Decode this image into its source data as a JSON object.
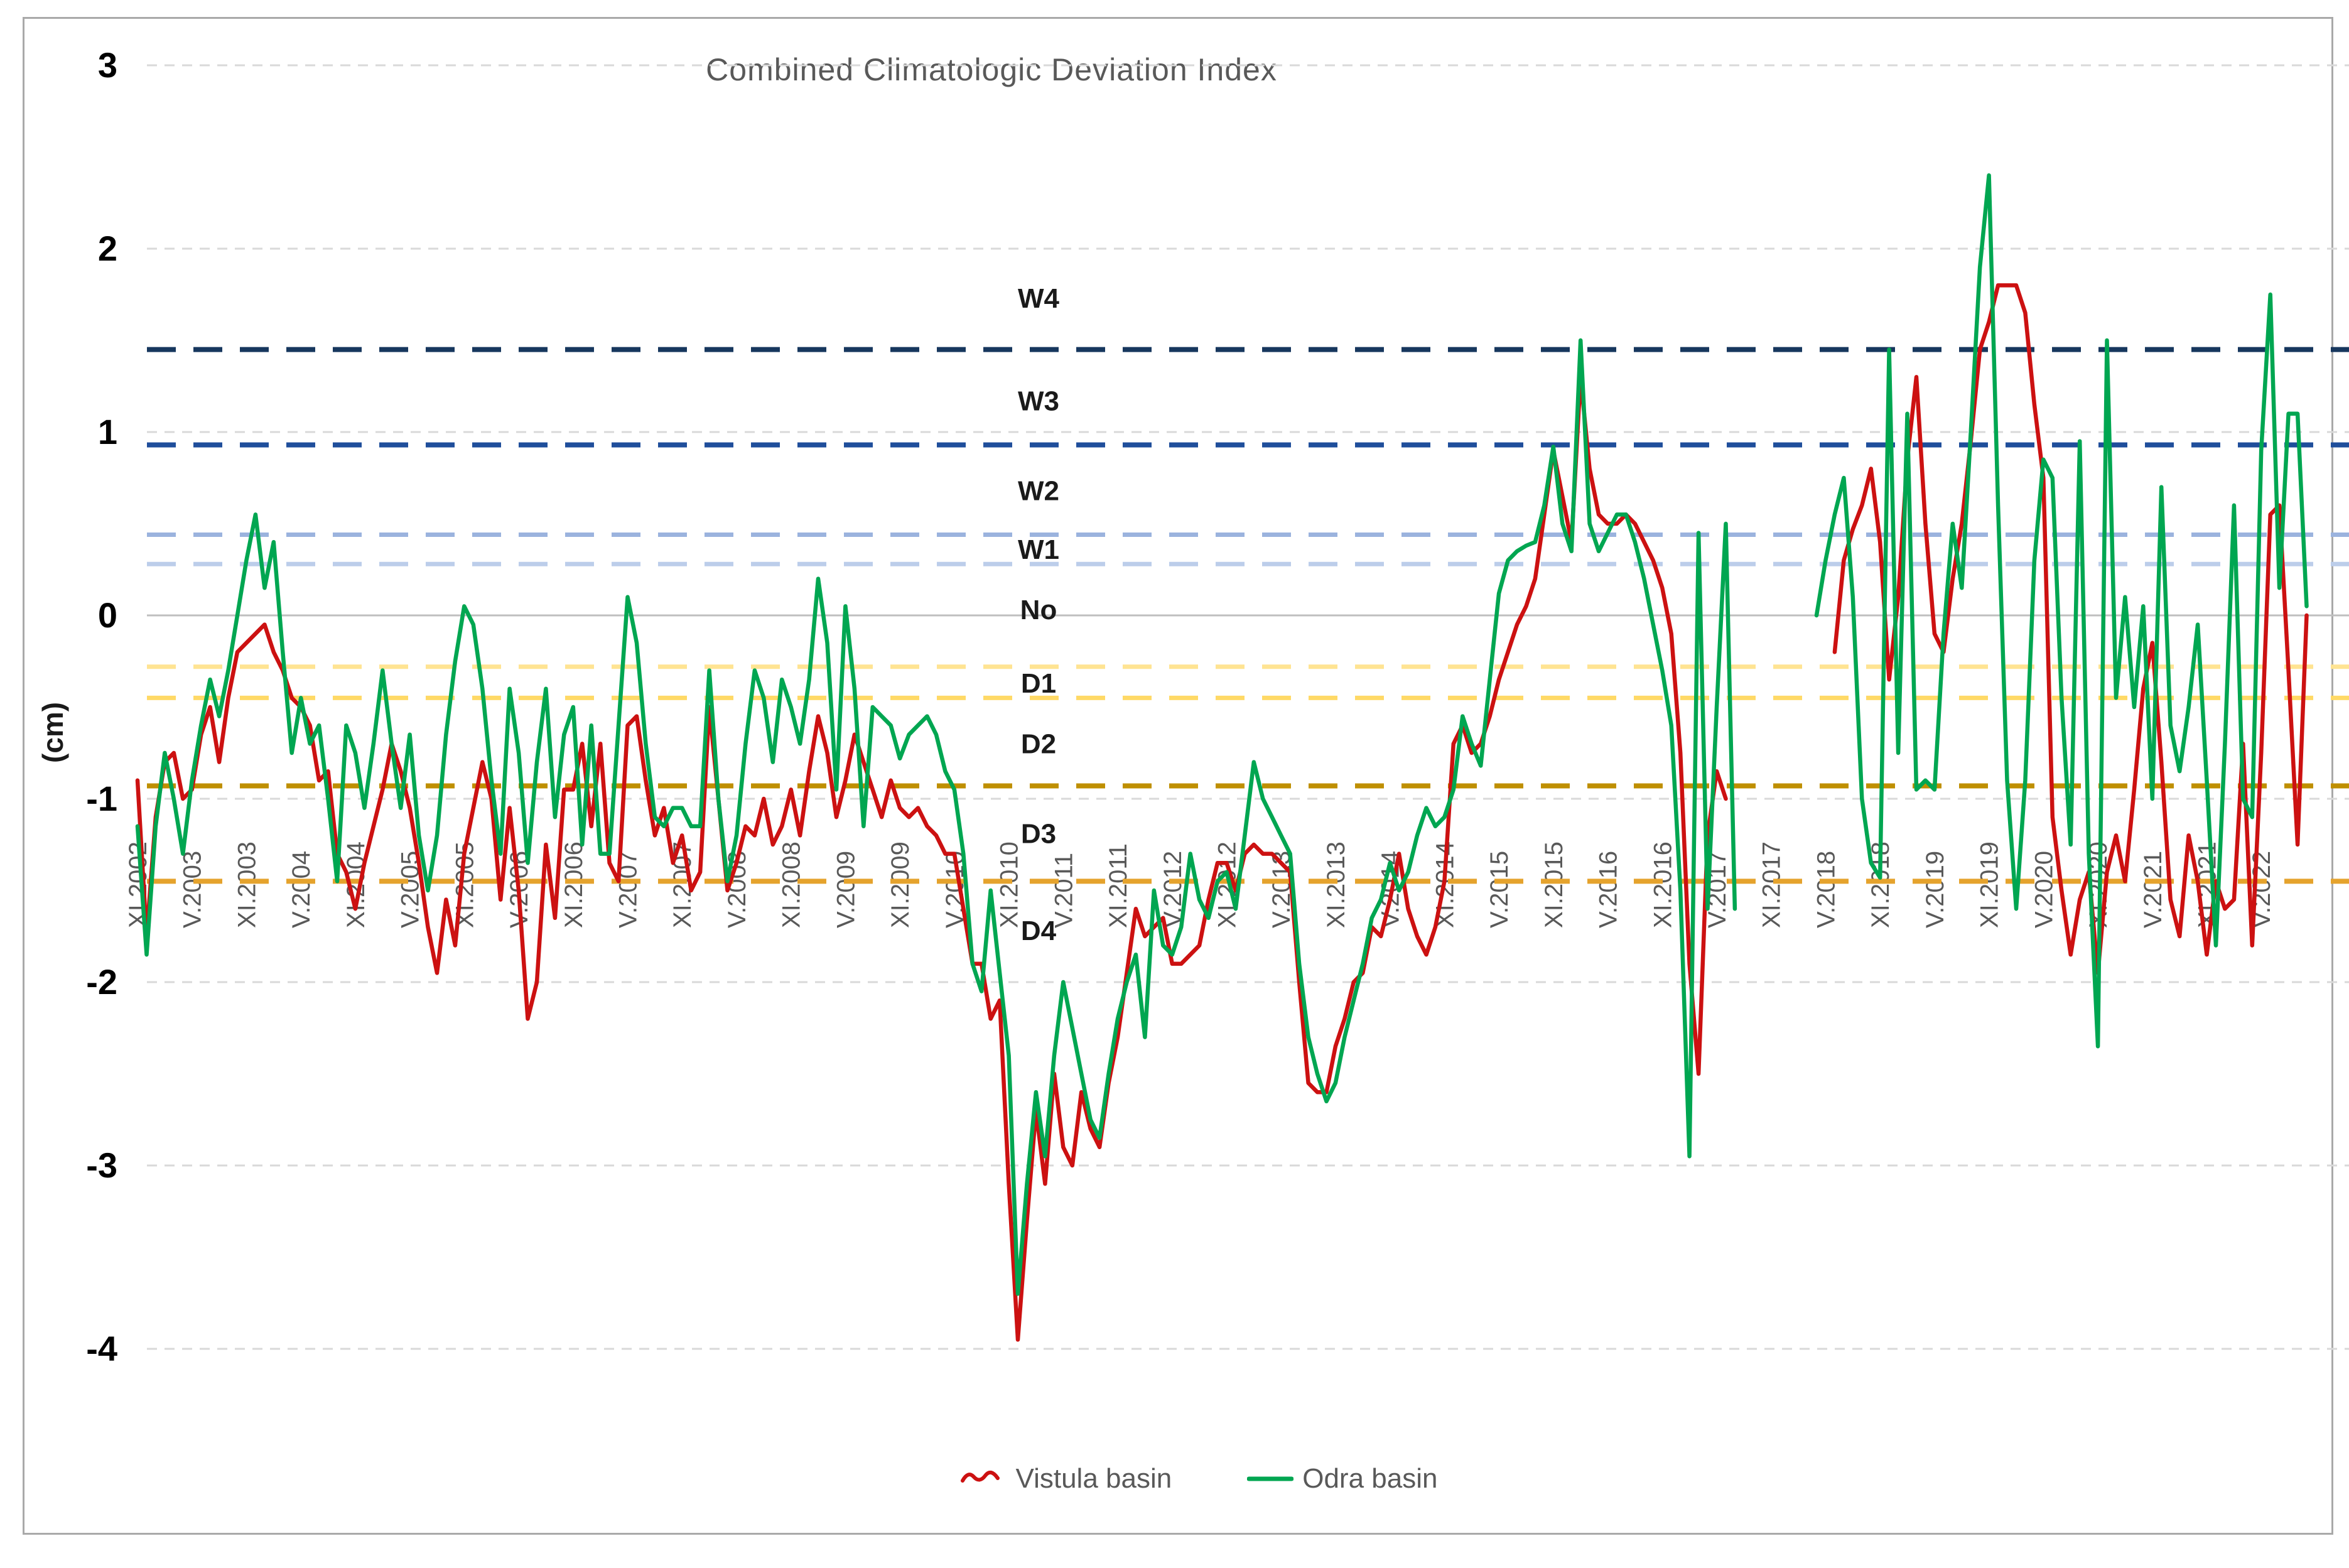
{
  "title": "Combined Climatologic Deviation Index",
  "legend": {
    "vistula_label": "Vistula basin",
    "odra_label": "Odra basin"
  },
  "chart_data": {
    "type": "line",
    "title": "Combined Climatologic Deviation Index",
    "ylabel": "(cm)",
    "ylim": [
      -4.6,
      3.2
    ],
    "y_ticks": [
      "3",
      "2",
      "1",
      "0",
      "-1",
      "-2",
      "-3",
      "-4"
    ],
    "y_tick_values": [
      3,
      2,
      1,
      0,
      -1,
      -2,
      -3,
      -4
    ],
    "grid": "horizontal-dashed",
    "x_interval": "monthly",
    "x_start": "XI.2002",
    "x_end": "X.2022",
    "x_tick_labels": [
      "XI.2002",
      "V.2003",
      "XI.2003",
      "V.2004",
      "XI.2004",
      "V.2005",
      "XI.2005",
      "V.2006",
      "XI.2006",
      "V.2007",
      "XI.2007",
      "V.2008",
      "XI.2008",
      "V.2009",
      "XI.2009",
      "V.2010",
      "XI.2010",
      "V.2011",
      "XI.2011",
      "V.2012",
      "XI.2012",
      "V.2013",
      "XI.2013",
      "V.2014",
      "XI.2014",
      "V.2015",
      "XI.2015",
      "V.2016",
      "XI.2016",
      "V.2017",
      "XI.2017",
      "V.2018",
      "XI.2018",
      "V.2019",
      "XI.2019",
      "V.2020",
      "XI.2020",
      "V.2021",
      "XI.2021",
      "V.2022"
    ],
    "threshold_lines": [
      {
        "value": 1.45,
        "color": "#17375E",
        "width": 8,
        "style": "dashed"
      },
      {
        "value": 0.93,
        "color": "#1F4E9B",
        "width": 8,
        "style": "dashed"
      },
      {
        "value": 0.44,
        "color": "#9BB3DE",
        "width": 7,
        "style": "dashed"
      },
      {
        "value": 0.28,
        "color": "#BCCDEA",
        "width": 7,
        "style": "dashed"
      },
      {
        "value": -0.28,
        "color": "#FFE492",
        "width": 7,
        "style": "dashed"
      },
      {
        "value": -0.45,
        "color": "#FFD966",
        "width": 7,
        "style": "dashed"
      },
      {
        "value": -0.93,
        "color": "#BF8F00",
        "width": 8,
        "style": "dashed"
      },
      {
        "value": -1.45,
        "color": "#E5A32D",
        "width": 8,
        "style": "dashed"
      }
    ],
    "zone_labels": [
      {
        "text": "W4",
        "value": 1.73
      },
      {
        "text": "W3",
        "value": 1.17
      },
      {
        "text": "W2",
        "value": 0.68
      },
      {
        "text": "W1",
        "value": 0.36
      },
      {
        "text": "No",
        "value": 0.03
      },
      {
        "text": "D1",
        "value": -0.37
      },
      {
        "text": "D2",
        "value": -0.7
      },
      {
        "text": "D3",
        "value": -1.19
      },
      {
        "text": "D4",
        "value": -1.72
      }
    ],
    "legend_position": "bottom-center",
    "series": [
      {
        "name": "Vistula basin",
        "color": "#CC1111",
        "values": [
          -0.9,
          -1.75,
          -1.1,
          -0.8,
          -0.75,
          -1.0,
          -0.95,
          -0.65,
          -0.5,
          -0.8,
          -0.45,
          -0.2,
          -0.15,
          -0.1,
          -0.05,
          -0.2,
          -0.3,
          -0.45,
          -0.5,
          -0.6,
          -0.9,
          -0.85,
          -1.3,
          -1.4,
          -1.6,
          -1.35,
          -1.15,
          -0.95,
          -0.7,
          -0.85,
          -1.05,
          -1.35,
          -1.7,
          -1.95,
          -1.55,
          -1.8,
          -1.3,
          -1.05,
          -0.8,
          -1.0,
          -1.55,
          -1.05,
          -1.5,
          -2.2,
          -2.0,
          -1.25,
          -1.65,
          -0.95,
          -0.95,
          -0.7,
          -1.15,
          -0.7,
          -1.35,
          -1.45,
          -0.6,
          -0.55,
          -0.9,
          -1.2,
          -1.05,
          -1.35,
          -1.2,
          -1.5,
          -1.4,
          -0.5,
          -1.0,
          -1.5,
          -1.35,
          -1.15,
          -1.2,
          -1.0,
          -1.25,
          -1.15,
          -0.95,
          -1.2,
          -0.85,
          -0.55,
          -0.75,
          -1.1,
          -0.9,
          -0.65,
          -0.8,
          -0.95,
          -1.1,
          -0.9,
          -1.05,
          -1.1,
          -1.05,
          -1.15,
          -1.2,
          -1.3,
          -1.3,
          -1.6,
          -1.9,
          -1.9,
          -2.2,
          -2.1,
          -3.1,
          -3.95,
          -3.3,
          -2.7,
          -3.1,
          -2.5,
          -2.9,
          -3.0,
          -2.6,
          -2.8,
          -2.9,
          -2.55,
          -2.3,
          -1.95,
          -1.6,
          -1.75,
          -1.7,
          -1.65,
          -1.9,
          -1.9,
          -1.85,
          -1.8,
          -1.55,
          -1.35,
          -1.35,
          -1.5,
          -1.3,
          -1.25,
          -1.3,
          -1.3,
          -1.35,
          -1.4,
          -2.0,
          -2.55,
          -2.6,
          -2.6,
          -2.35,
          -2.2,
          -2.0,
          -1.95,
          -1.7,
          -1.75,
          -1.55,
          -1.3,
          -1.6,
          -1.75,
          -1.85,
          -1.7,
          -1.45,
          -0.7,
          -0.6,
          -0.75,
          -0.7,
          -0.55,
          -0.35,
          -0.2,
          -0.05,
          0.05,
          0.2,
          0.55,
          0.9,
          0.65,
          0.4,
          1.3,
          0.8,
          0.55,
          0.5,
          0.5,
          0.55,
          0.5,
          0.4,
          0.3,
          0.15,
          -0.1,
          -0.75,
          -1.9,
          -2.5,
          -1.2,
          -0.85,
          -1.0,
          null,
          null,
          null,
          null,
          null,
          null,
          null,
          null,
          null,
          null,
          null,
          -0.2,
          0.3,
          0.47,
          0.6,
          0.8,
          0.4,
          -0.35,
          0.1,
          0.85,
          1.3,
          0.5,
          -0.1,
          -0.2,
          0.2,
          0.5,
          0.95,
          1.45,
          1.6,
          1.8,
          1.8,
          1.8,
          1.65,
          1.15,
          0.75,
          -1.1,
          -1.5,
          -1.85,
          -1.55,
          -1.4,
          -1.95,
          -1.4,
          -1.2,
          -1.45,
          -0.95,
          -0.4,
          -0.15,
          -0.8,
          -1.55,
          -1.75,
          -1.2,
          -1.45,
          -1.85,
          -1.45,
          -1.6,
          -1.55,
          -0.7,
          -1.8,
          -0.75,
          0.55,
          0.6,
          -0.3,
          -1.25,
          0.0
        ]
      },
      {
        "name": "Odra basin",
        "color": "#00A651",
        "values": [
          -1.15,
          -1.85,
          -1.15,
          -0.75,
          -1.0,
          -1.3,
          -0.9,
          -0.6,
          -0.35,
          -0.55,
          -0.3,
          0.0,
          0.3,
          0.55,
          0.15,
          0.4,
          -0.2,
          -0.75,
          -0.45,
          -0.7,
          -0.6,
          -1.0,
          -1.45,
          -0.6,
          -0.75,
          -1.05,
          -0.7,
          -0.3,
          -0.7,
          -1.05,
          -0.65,
          -1.2,
          -1.5,
          -1.2,
          -0.65,
          -0.25,
          0.05,
          -0.05,
          -0.4,
          -0.9,
          -1.3,
          -0.4,
          -0.75,
          -1.35,
          -0.8,
          -0.4,
          -1.1,
          -0.65,
          -0.5,
          -1.25,
          -0.6,
          -1.3,
          -1.3,
          -0.6,
          0.1,
          -0.15,
          -0.7,
          -1.1,
          -1.15,
          -1.05,
          -1.05,
          -1.15,
          -1.15,
          -0.3,
          -1.0,
          -1.45,
          -1.2,
          -0.7,
          -0.3,
          -0.45,
          -0.8,
          -0.35,
          -0.5,
          -0.7,
          -0.35,
          0.2,
          -0.15,
          -0.95,
          0.05,
          -0.4,
          -1.15,
          -0.5,
          -0.55,
          -0.6,
          -0.78,
          -0.65,
          -0.6,
          -0.55,
          -0.65,
          -0.85,
          -0.95,
          -1.3,
          -1.9,
          -2.05,
          -1.5,
          -1.95,
          -2.4,
          -3.7,
          -3.1,
          -2.6,
          -2.95,
          -2.4,
          -2.0,
          -2.25,
          -2.5,
          -2.75,
          -2.85,
          -2.5,
          -2.2,
          -2.0,
          -1.85,
          -2.3,
          -1.5,
          -1.8,
          -1.85,
          -1.7,
          -1.3,
          -1.55,
          -1.65,
          -1.45,
          -1.4,
          -1.6,
          -1.2,
          -0.8,
          -1.0,
          -1.1,
          -1.2,
          -1.3,
          -1.9,
          -2.3,
          -2.5,
          -2.65,
          -2.55,
          -2.3,
          -2.1,
          -1.9,
          -1.65,
          -1.55,
          -1.35,
          -1.5,
          -1.4,
          -1.2,
          -1.05,
          -1.15,
          -1.1,
          -0.95,
          -0.55,
          -0.7,
          -0.82,
          -0.35,
          0.12,
          0.3,
          0.35,
          0.38,
          0.4,
          0.6,
          0.92,
          0.5,
          0.35,
          1.5,
          0.5,
          0.35,
          0.45,
          0.55,
          0.55,
          0.4,
          0.2,
          -0.05,
          -0.3,
          -0.6,
          -1.5,
          -2.95,
          0.45,
          -1.6,
          -0.5,
          0.5,
          -1.6,
          null,
          null,
          null,
          null,
          null,
          null,
          null,
          null,
          0.0,
          0.3,
          0.55,
          0.75,
          0.1,
          -1.0,
          -1.35,
          -1.43,
          1.45,
          -0.75,
          1.1,
          -0.95,
          -0.9,
          -0.95,
          -0.1,
          0.5,
          0.15,
          1.0,
          1.9,
          2.4,
          0.6,
          -0.9,
          -1.6,
          -0.9,
          0.3,
          0.85,
          0.75,
          -0.45,
          -1.25,
          0.95,
          -1.3,
          -2.35,
          1.5,
          -0.45,
          0.1,
          -0.5,
          0.05,
          -1.0,
          0.7,
          -0.6,
          -0.85,
          -0.5,
          -0.05,
          -0.9,
          -1.8,
          -0.7,
          0.6,
          -1.0,
          -1.1,
          0.9,
          1.75,
          0.15,
          1.1,
          1.1,
          0.05
        ]
      }
    ],
    "colors": {
      "gridline": "#D9D9D9",
      "zero_line": "#BFBFBF",
      "axis_text": "#595959",
      "tick_text": "#000000",
      "title_text": "#595959",
      "frame_border": "#A9A9A9"
    }
  }
}
